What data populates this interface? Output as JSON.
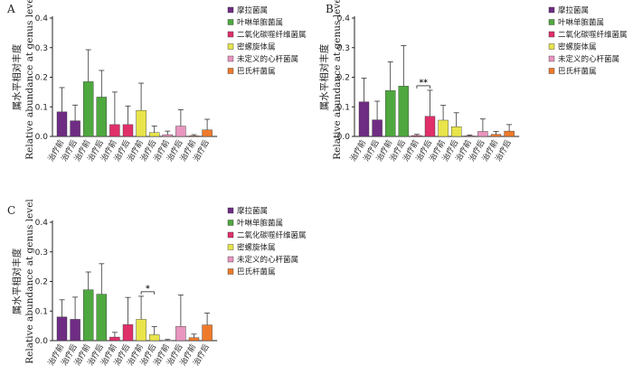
{
  "chart_data": [
    {
      "panel": "A",
      "type": "bar",
      "ylabel_zh": "属水平相对丰度",
      "ylabel_en": "Relative abundance at genus level",
      "ylim": [
        0,
        0.4
      ],
      "yticks": [
        "0.0",
        "0.1",
        "0.2",
        "0.3",
        "0.4"
      ],
      "bar_labels": [
        "治疗前",
        "治疗后",
        "治疗前",
        "治疗后",
        "治疗前",
        "治疗后",
        "治疗前",
        "治疗后",
        "治疗前",
        "治疗后",
        "治疗前",
        "治疗后"
      ],
      "legend": [
        "摩拉菌属",
        "叶啉单胞菌属",
        "二氧化碳噬纤维菌属",
        "密螺旋体属",
        "未定义的心杆菌属",
        "巴氏杆菌属"
      ],
      "series_colors": [
        "#6f2c83",
        "#4fa83f",
        "#e0306a",
        "#e8e44a",
        "#e896bf",
        "#ef7a2b"
      ],
      "values": [
        0.083,
        0.053,
        0.185,
        0.133,
        0.04,
        0.04,
        0.088,
        0.013,
        0.006,
        0.035,
        0.002,
        0.022
      ],
      "errors": [
        0.082,
        0.053,
        0.108,
        0.09,
        0.11,
        0.063,
        0.092,
        0.022,
        0.012,
        0.055,
        0.004,
        0.036
      ],
      "significance": []
    },
    {
      "panel": "B",
      "type": "bar",
      "ylabel_zh": "属水平相对丰度",
      "ylabel_en": "Relative abundance at genus level",
      "ylim": [
        0,
        0.4
      ],
      "yticks": [
        "0.0",
        "0.1",
        "0.2",
        "0.3",
        "0.4"
      ],
      "bar_labels": [
        "治疗前",
        "治疗后",
        "治疗前",
        "治疗后",
        "治疗前",
        "治疗后",
        "治疗前",
        "治疗后",
        "治疗前",
        "治疗后",
        "治疗前",
        "治疗后"
      ],
      "legend": [
        "摩拉菌属",
        "叶啉单胞菌属",
        "二氧化碳噬纤维菌属",
        "密螺旋体属",
        "未定义的心杆菌属",
        "巴氏杆菌属"
      ],
      "series_colors": [
        "#6f2c83",
        "#4fa83f",
        "#e0306a",
        "#e8e44a",
        "#e896bf",
        "#ef7a2b"
      ],
      "values": [
        0.117,
        0.056,
        0.155,
        0.17,
        0.003,
        0.068,
        0.055,
        0.033,
        0.002,
        0.017,
        0.007,
        0.018
      ],
      "errors": [
        0.08,
        0.063,
        0.097,
        0.137,
        0.004,
        0.088,
        0.05,
        0.047,
        0.003,
        0.042,
        0.01,
        0.022
      ],
      "significance": [
        {
          "from": 4,
          "to": 5,
          "label": "**"
        }
      ]
    },
    {
      "panel": "C",
      "type": "bar",
      "ylabel_zh": "属水平相对丰度",
      "ylabel_en": "Relative abundance at genus level",
      "ylim": [
        0,
        0.4
      ],
      "yticks": [
        "0.0",
        "0.1",
        "0.2",
        "0.3",
        "0.4"
      ],
      "bar_labels": [
        "治疗前",
        "治疗后",
        "治疗前",
        "治疗后",
        "治疗前",
        "治疗后",
        "治疗前",
        "治疗后",
        "治疗前",
        "治疗后",
        "治疗前",
        "治疗后"
      ],
      "legend": [
        "摩拉菌属",
        "叶啉单胞菌属",
        "二氧化碳噬纤维菌属",
        "密螺旋体属",
        "未定义的心杆菌属",
        "巴氏杆菌属"
      ],
      "series_colors": [
        "#6f2c83",
        "#4fa83f",
        "#e0306a",
        "#e8e44a",
        "#e896bf",
        "#ef7a2b"
      ],
      "values": [
        0.08,
        0.072,
        0.172,
        0.157,
        0.012,
        0.054,
        0.072,
        0.02,
        0.001,
        0.048,
        0.01,
        0.053
      ],
      "errors": [
        0.058,
        0.075,
        0.06,
        0.103,
        0.016,
        0.092,
        0.078,
        0.027,
        0.003,
        0.106,
        0.012,
        0.04
      ],
      "significance": [
        {
          "from": 6,
          "to": 7,
          "label": "*"
        }
      ]
    }
  ]
}
